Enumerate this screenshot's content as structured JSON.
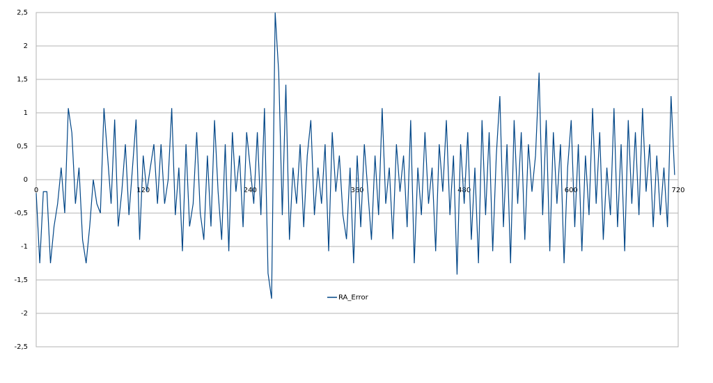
{
  "chart_data": {
    "type": "line",
    "x": [
      0,
      4,
      8,
      12,
      16,
      20,
      24,
      28,
      32,
      36,
      40,
      44,
      48,
      52,
      56,
      60,
      64,
      68,
      72,
      76,
      80,
      84,
      88,
      92,
      96,
      100,
      104,
      108,
      112,
      116,
      120,
      124,
      128,
      132,
      136,
      140,
      144,
      148,
      152,
      156,
      160,
      164,
      168,
      172,
      176,
      180,
      184,
      188,
      192,
      196,
      200,
      204,
      208,
      212,
      216,
      220,
      224,
      228,
      232,
      236,
      240,
      244,
      248,
      252,
      256,
      260,
      264,
      268,
      272,
      276,
      280,
      284,
      288,
      292,
      296,
      300,
      304,
      308,
      312,
      316,
      320,
      324,
      328,
      332,
      336,
      340,
      344,
      348,
      352,
      356,
      360,
      364,
      368,
      372,
      376,
      380,
      384,
      388,
      392,
      396,
      400,
      404,
      408,
      412,
      416,
      420,
      424,
      428,
      432,
      436,
      440,
      444,
      448,
      452,
      456,
      460,
      464,
      468,
      472,
      476,
      480,
      484,
      488,
      492,
      496,
      500,
      504,
      508,
      512,
      516,
      520,
      524,
      528,
      532,
      536,
      540,
      544,
      548,
      552,
      556,
      560,
      564,
      568,
      572,
      576,
      580,
      584,
      588,
      592,
      596,
      600,
      604,
      608,
      612,
      616,
      620,
      624,
      628,
      632,
      636,
      640,
      644,
      648,
      652,
      656,
      660,
      664,
      668,
      672,
      676,
      680,
      684,
      688,
      692,
      696,
      700,
      704,
      708,
      712,
      716
    ],
    "series": [
      {
        "name": "RA_Error",
        "color": "#004586",
        "values": [
          -0.2,
          -1.25,
          -0.18,
          -0.18,
          -1.25,
          -0.7,
          -0.36,
          0.18,
          -0.5,
          1.07,
          0.7,
          -0.36,
          0.18,
          -0.9,
          -1.25,
          -0.7,
          0,
          -0.36,
          -0.5,
          1.07,
          0.36,
          -0.36,
          0.9,
          -0.7,
          -0.18,
          0.53,
          -0.53,
          0.18,
          0.9,
          -0.9,
          0.36,
          -0.18,
          0.18,
          0.53,
          -0.36,
          0.53,
          -0.36,
          0,
          1.07,
          -0.53,
          0.18,
          -1.07,
          0.53,
          -0.7,
          -0.36,
          0.71,
          -0.5,
          -0.9,
          0.36,
          -0.7,
          0.89,
          -0.18,
          -0.9,
          0.53,
          -1.07,
          0.71,
          -0.18,
          0.36,
          -0.71,
          0.71,
          0.18,
          -0.36,
          0.71,
          -0.53,
          1.07,
          -1.4,
          -1.78,
          2.5,
          1.6,
          -0.53,
          1.42,
          -0.9,
          0.18,
          -0.36,
          0.53,
          -0.71,
          0.36,
          0.89,
          -0.53,
          0.18,
          -0.36,
          0.53,
          -1.07,
          0.71,
          -0.18,
          0.36,
          -0.53,
          -0.89,
          0.18,
          -1.25,
          0.36,
          -0.71,
          0.53,
          -0.18,
          -0.9,
          0.36,
          -0.53,
          1.07,
          -0.36,
          0.18,
          -0.89,
          0.53,
          -0.18,
          0.36,
          -0.71,
          0.89,
          -1.25,
          0.18,
          -0.53,
          0.71,
          -0.36,
          0.18,
          -1.07,
          0.53,
          -0.18,
          0.89,
          -0.53,
          0.36,
          -1.42,
          0.53,
          -0.36,
          0.71,
          -0.9,
          0.18,
          -1.25,
          0.89,
          -0.53,
          0.71,
          -1.07,
          0.36,
          1.25,
          -0.71,
          0.53,
          -1.25,
          0.89,
          -0.36,
          0.71,
          -0.9,
          0.53,
          -0.18,
          0.36,
          1.6,
          -0.53,
          0.89,
          -1.07,
          0.71,
          -0.36,
          0.53,
          -1.25,
          0.18,
          0.89,
          -0.71,
          0.53,
          -1.07,
          0.36,
          -0.53,
          1.07,
          -0.36,
          0.71,
          -0.9,
          0.18,
          -0.53,
          1.07,
          -0.71,
          0.53,
          -1.07,
          0.89,
          -0.36,
          0.71,
          -0.53,
          1.07,
          -0.18,
          0.53,
          -0.71,
          0.36,
          -0.53,
          0.18,
          -0.71,
          1.25,
          0.07
        ]
      }
    ],
    "xlim": [
      0,
      720
    ],
    "xticks": [
      0,
      120,
      240,
      360,
      480,
      600,
      720
    ],
    "ylim": [
      -2.5,
      2.5
    ],
    "yticks": [
      {
        "value": 2.5,
        "label": "2,5"
      },
      2,
      {
        "value": 1.5,
        "label": "1,5"
      },
      1,
      {
        "value": 0.5,
        "label": "0,5"
      },
      0,
      {
        "value": -0.5,
        "label": "-0,5"
      },
      -1,
      {
        "value": -1.5,
        "label": "-1,5"
      },
      -2,
      {
        "value": -2.5,
        "label": "-2,5"
      }
    ],
    "grid": true,
    "legend": "inside"
  }
}
